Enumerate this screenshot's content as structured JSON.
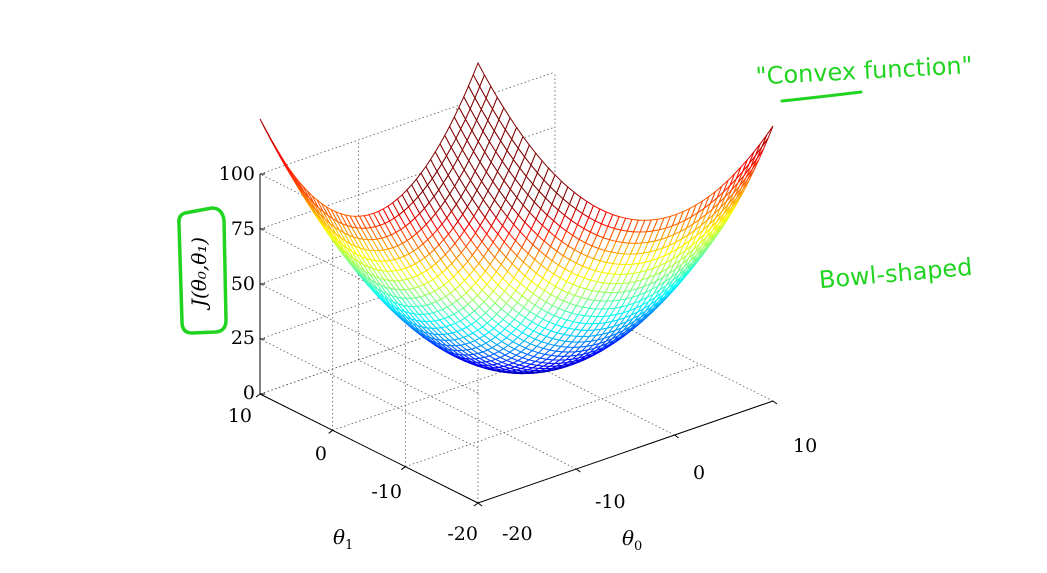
{
  "chart_data": {
    "type": "surface",
    "function": "J(theta0, theta1) = 0.25*theta0^2 + 0.25*theta1^2",
    "x": {
      "label_symbol": "θ",
      "label_sub": "0",
      "range": [
        -20,
        10
      ],
      "ticks": [
        "-20",
        "-10",
        "0",
        "10"
      ]
    },
    "y": {
      "label_symbol": "θ",
      "label_sub": "1",
      "range": [
        -20,
        10
      ],
      "ticks": [
        "-20",
        "-10",
        "0",
        "10"
      ]
    },
    "z": {
      "label": "J(θ₀,θ₁)",
      "range": [
        0,
        100
      ],
      "ticks": [
        "0",
        "25",
        "50",
        "75",
        "100"
      ]
    },
    "surface_samples": [
      {
        "theta0": 10,
        "theta1": 10,
        "J": 50
      },
      {
        "theta0": -20,
        "theta1": 10,
        "J": 125
      },
      {
        "theta0": 10,
        "theta1": -20,
        "J": 125
      },
      {
        "theta0": 0,
        "theta1": 0,
        "J": 0
      }
    ],
    "grid": true,
    "colormap": "jet"
  },
  "annotations": {
    "convex": {
      "open_quote": "\"",
      "word": "Convex",
      "rest": " function\""
    },
    "bowl": "Bowl-shaped",
    "color": "#22d422"
  }
}
